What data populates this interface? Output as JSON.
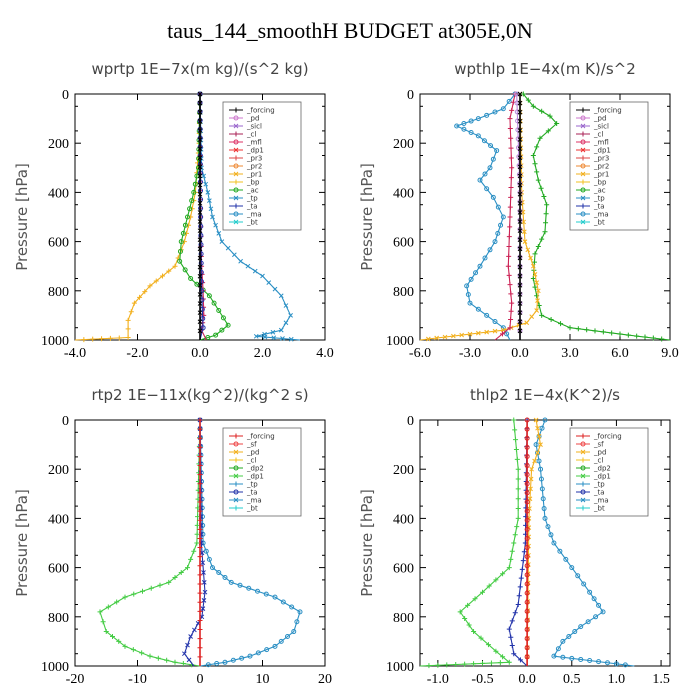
{
  "page": {
    "title": "taus_144_smoothH  BUDGET at305E,0N"
  },
  "chart_data": [
    {
      "type": "line",
      "title": "wprtp  1E−7x(m kg)/(s^2 kg)",
      "ylabel": "Pressure [hPa]",
      "xlim": [
        -4.0,
        4.0
      ],
      "ylim": [
        1000,
        0
      ],
      "xticks": [
        "-4.0",
        "-2.0",
        "0.0",
        "2.0",
        "4.0"
      ],
      "yticks": [
        "0",
        "200",
        "400",
        "600",
        "800",
        "1000"
      ],
      "legend_position": "top-right",
      "legend": [
        "_forcing",
        "_pd",
        "_sicl",
        "_cl",
        "_mfl",
        "_dp1",
        "_pr3",
        "_pr2",
        "_pr1",
        "_bp",
        "_ac",
        "_tp",
        "_ta",
        "_ma",
        "_bt"
      ],
      "series": [
        {
          "name": "_bp",
          "color": "#f2b01e",
          "points": [
            [
              0,
              0
            ],
            [
              -0.03,
              200
            ],
            [
              -0.15,
              400
            ],
            [
              -0.3,
              500
            ],
            [
              -0.5,
              600
            ],
            [
              -0.8,
              700
            ],
            [
              -1.6,
              780
            ],
            [
              -2.1,
              850
            ],
            [
              -2.3,
              920
            ],
            [
              -2.3,
              990
            ],
            [
              -4.0,
              1000
            ]
          ]
        },
        {
          "name": "_ac",
          "color": "#22aa22",
          "points": [
            [
              0,
              0
            ],
            [
              -0.05,
              300
            ],
            [
              -0.2,
              400
            ],
            [
              -0.4,
              500
            ],
            [
              -0.6,
              600
            ],
            [
              -0.65,
              680
            ],
            [
              -0.3,
              750
            ],
            [
              0.3,
              820
            ],
            [
              0.6,
              880
            ],
            [
              0.9,
              940
            ],
            [
              0.5,
              980
            ],
            [
              0,
              1000
            ]
          ]
        },
        {
          "name": "_tp",
          "color": "#2a8fc4",
          "points": [
            [
              0,
              0
            ],
            [
              0.05,
              300
            ],
            [
              0.25,
              400
            ],
            [
              0.4,
              500
            ],
            [
              0.7,
              600
            ],
            [
              1.3,
              680
            ],
            [
              2.0,
              740
            ],
            [
              2.6,
              820
            ],
            [
              2.9,
              900
            ],
            [
              2.6,
              960
            ],
            [
              1.8,
              985
            ],
            [
              3.2,
              1000
            ]
          ]
        },
        {
          "name": "_cl",
          "color": "#cc2255",
          "points": [
            [
              0,
              0
            ],
            [
              0.02,
              500
            ],
            [
              0.05,
              700
            ],
            [
              0.1,
              800
            ],
            [
              0.12,
              900
            ],
            [
              0.05,
              960
            ],
            [
              0.2,
              1000
            ]
          ]
        },
        {
          "name": "_ta",
          "color": "#2233aa",
          "points": [
            [
              0,
              0
            ],
            [
              0.02,
              500
            ],
            [
              0.05,
              800
            ],
            [
              0.1,
              950
            ],
            [
              0,
              1000
            ]
          ]
        },
        {
          "name": "_forcing",
          "color": "#000000",
          "points": [
            [
              0,
              0
            ],
            [
              0,
              1000
            ]
          ]
        }
      ]
    },
    {
      "type": "line",
      "title": "wpthlp  1E−4x(m K)/s^2",
      "ylabel": "Pressure [hPa]",
      "xlim": [
        -6.0,
        9.0
      ],
      "ylim": [
        1000,
        0
      ],
      "xticks": [
        "-6.0",
        "-3.0",
        "0.0",
        "3.0",
        "6.0",
        "9.0"
      ],
      "yticks": [
        "0",
        "200",
        "400",
        "600",
        "800",
        "1000"
      ],
      "legend_position": "top-right",
      "legend": [
        "_forcing",
        "_pd",
        "_sicl",
        "_cl",
        "_mfl",
        "_dp1",
        "_pr3",
        "_pr2",
        "_pr1",
        "_bp",
        "_ac",
        "_tp",
        "_ta",
        "_ma",
        "_bt"
      ],
      "series": [
        {
          "name": "_ac",
          "color": "#22aa22",
          "points": [
            [
              0.2,
              0
            ],
            [
              0.8,
              50
            ],
            [
              1.8,
              90
            ],
            [
              2.2,
              120
            ],
            [
              1.2,
              180
            ],
            [
              0.8,
              250
            ],
            [
              1.1,
              350
            ],
            [
              1.6,
              450
            ],
            [
              1.5,
              560
            ],
            [
              0.9,
              650
            ],
            [
              0.8,
              750
            ],
            [
              1.0,
              820
            ],
            [
              1.3,
              900
            ],
            [
              3.0,
              950
            ],
            [
              6.5,
              980
            ],
            [
              9.0,
              1000
            ]
          ]
        },
        {
          "name": "_tp",
          "color": "#2a8fc4",
          "points": [
            [
              -0.3,
              0
            ],
            [
              -1.0,
              60
            ],
            [
              -2.5,
              100
            ],
            [
              -3.8,
              130
            ],
            [
              -2.5,
              170
            ],
            [
              -1.4,
              230
            ],
            [
              -1.8,
              300
            ],
            [
              -2.4,
              350
            ],
            [
              -1.6,
              420
            ],
            [
              -1.0,
              500
            ],
            [
              -1.5,
              600
            ],
            [
              -2.4,
              700
            ],
            [
              -3.2,
              780
            ],
            [
              -3.0,
              850
            ],
            [
              -2.0,
              900
            ],
            [
              -1.0,
              950
            ],
            [
              -0.6,
              1000
            ]
          ]
        },
        {
          "name": "_bp",
          "color": "#f2b01e",
          "points": [
            [
              0,
              0
            ],
            [
              0.1,
              400
            ],
            [
              0.3,
              600
            ],
            [
              0.8,
              700
            ],
            [
              1.1,
              800
            ],
            [
              1.0,
              880
            ],
            [
              0.4,
              930
            ],
            [
              -1.0,
              960
            ],
            [
              -3.5,
              980
            ],
            [
              -6.0,
              1000
            ]
          ]
        },
        {
          "name": "_cl",
          "color": "#cc2255",
          "points": [
            [
              -0.3,
              0
            ],
            [
              -0.6,
              100
            ],
            [
              -0.5,
              300
            ],
            [
              -0.6,
              500
            ],
            [
              -0.7,
              700
            ],
            [
              -0.5,
              850
            ],
            [
              -0.6,
              950
            ],
            [
              -1.5,
              1000
            ]
          ]
        },
        {
          "name": "_pd",
          "color": "#bb88dd",
          "points": [
            [
              -0.2,
              0
            ],
            [
              0,
              400
            ],
            [
              0,
              1000
            ]
          ]
        },
        {
          "name": "_forcing",
          "color": "#000000",
          "points": [
            [
              0,
              0
            ],
            [
              0,
              1000
            ]
          ]
        }
      ]
    },
    {
      "type": "line",
      "title": "rtp2  1E−11x(kg^2)/(kg^2 s)",
      "ylabel": "Pressure [hPa]",
      "xlim": [
        -20,
        20
      ],
      "ylim": [
        1000,
        0
      ],
      "xticks": [
        "-20",
        "-10",
        "0",
        "10",
        "20"
      ],
      "yticks": [
        "0",
        "200",
        "400",
        "600",
        "800",
        "1000"
      ],
      "legend_position": "top-right",
      "legend": [
        "_forcing",
        "_sf",
        "_pd",
        "_cl",
        "_dp2",
        "_dp1",
        "_tp",
        "_ta",
        "_ma",
        "_bt"
      ],
      "series": [
        {
          "name": "_dp1",
          "color": "#44cc44",
          "points": [
            [
              0,
              0
            ],
            [
              -0.5,
              500
            ],
            [
              -2,
              600
            ],
            [
              -5,
              660
            ],
            [
              -12,
              720
            ],
            [
              -16,
              780
            ],
            [
              -15,
              860
            ],
            [
              -12,
              920
            ],
            [
              -8,
              960
            ],
            [
              -4,
              985
            ],
            [
              0,
              1000
            ]
          ]
        },
        {
          "name": "_tp",
          "color": "#2a8fc4",
          "points": [
            [
              0,
              0
            ],
            [
              0.5,
              500
            ],
            [
              2,
              600
            ],
            [
              5,
              660
            ],
            [
              12,
              720
            ],
            [
              16,
              780
            ],
            [
              15,
              860
            ],
            [
              12,
              920
            ],
            [
              8,
              960
            ],
            [
              4,
              985
            ],
            [
              0,
              1000
            ]
          ]
        },
        {
          "name": "_ta",
          "color": "#2233aa",
          "points": [
            [
              0,
              0
            ],
            [
              0.2,
              500
            ],
            [
              0.8,
              700
            ],
            [
              0.3,
              800
            ],
            [
              -1.5,
              880
            ],
            [
              -2.5,
              950
            ],
            [
              -1,
              1000
            ]
          ]
        },
        {
          "name": "_forcing",
          "color": "#dd2222",
          "points": [
            [
              0,
              0
            ],
            [
              0,
              1000
            ]
          ]
        }
      ]
    },
    {
      "type": "line",
      "title": "thlp2  1E−4x(K^2)/s",
      "ylabel": "Pressure [hPa]",
      "xlim": [
        -1.2,
        1.6
      ],
      "ylim": [
        1000,
        0
      ],
      "xticks": [
        "-1.0",
        "-0.5",
        "0.0",
        "0.5",
        "1.0",
        "1.5"
      ],
      "yticks": [
        "0",
        "200",
        "400",
        "600",
        "800",
        "1000"
      ],
      "legend_position": "top-right",
      "legend": [
        "_forcing",
        "_sf",
        "_pd",
        "_cl",
        "_dp2",
        "_dp1",
        "_tp",
        "_ta",
        "_ma",
        "_bt"
      ],
      "series": [
        {
          "name": "_dp1",
          "color": "#44cc44",
          "points": [
            [
              -0.15,
              0
            ],
            [
              -0.1,
              200
            ],
            [
              -0.1,
              400
            ],
            [
              -0.2,
              600
            ],
            [
              -0.5,
              700
            ],
            [
              -0.75,
              780
            ],
            [
              -0.6,
              860
            ],
            [
              -0.35,
              940
            ],
            [
              -0.2,
              985
            ],
            [
              -1.2,
              1000
            ]
          ]
        },
        {
          "name": "_tp",
          "color": "#2a8fc4",
          "points": [
            [
              0.2,
              0
            ],
            [
              0.1,
              100
            ],
            [
              0.15,
              200
            ],
            [
              0.2,
              400
            ],
            [
              0.3,
              500
            ],
            [
              0.5,
              600
            ],
            [
              0.7,
              700
            ],
            [
              0.85,
              780
            ],
            [
              0.6,
              840
            ],
            [
              0.4,
              900
            ],
            [
              0.3,
              960
            ],
            [
              1.2,
              1000
            ]
          ]
        },
        {
          "name": "_pd",
          "color": "#f2b01e",
          "points": [
            [
              0.1,
              0
            ],
            [
              0.15,
              100
            ],
            [
              0.05,
              200
            ],
            [
              0.02,
              400
            ],
            [
              0,
              1000
            ]
          ]
        },
        {
          "name": "_ta",
          "color": "#2233aa",
          "points": [
            [
              0,
              0
            ],
            [
              -0.02,
              500
            ],
            [
              -0.1,
              750
            ],
            [
              -0.2,
              850
            ],
            [
              -0.15,
              950
            ],
            [
              0,
              1000
            ]
          ]
        },
        {
          "name": "_forcing",
          "color": "#dd2222",
          "points": [
            [
              0,
              0
            ],
            [
              0,
              1000
            ]
          ]
        }
      ]
    }
  ]
}
